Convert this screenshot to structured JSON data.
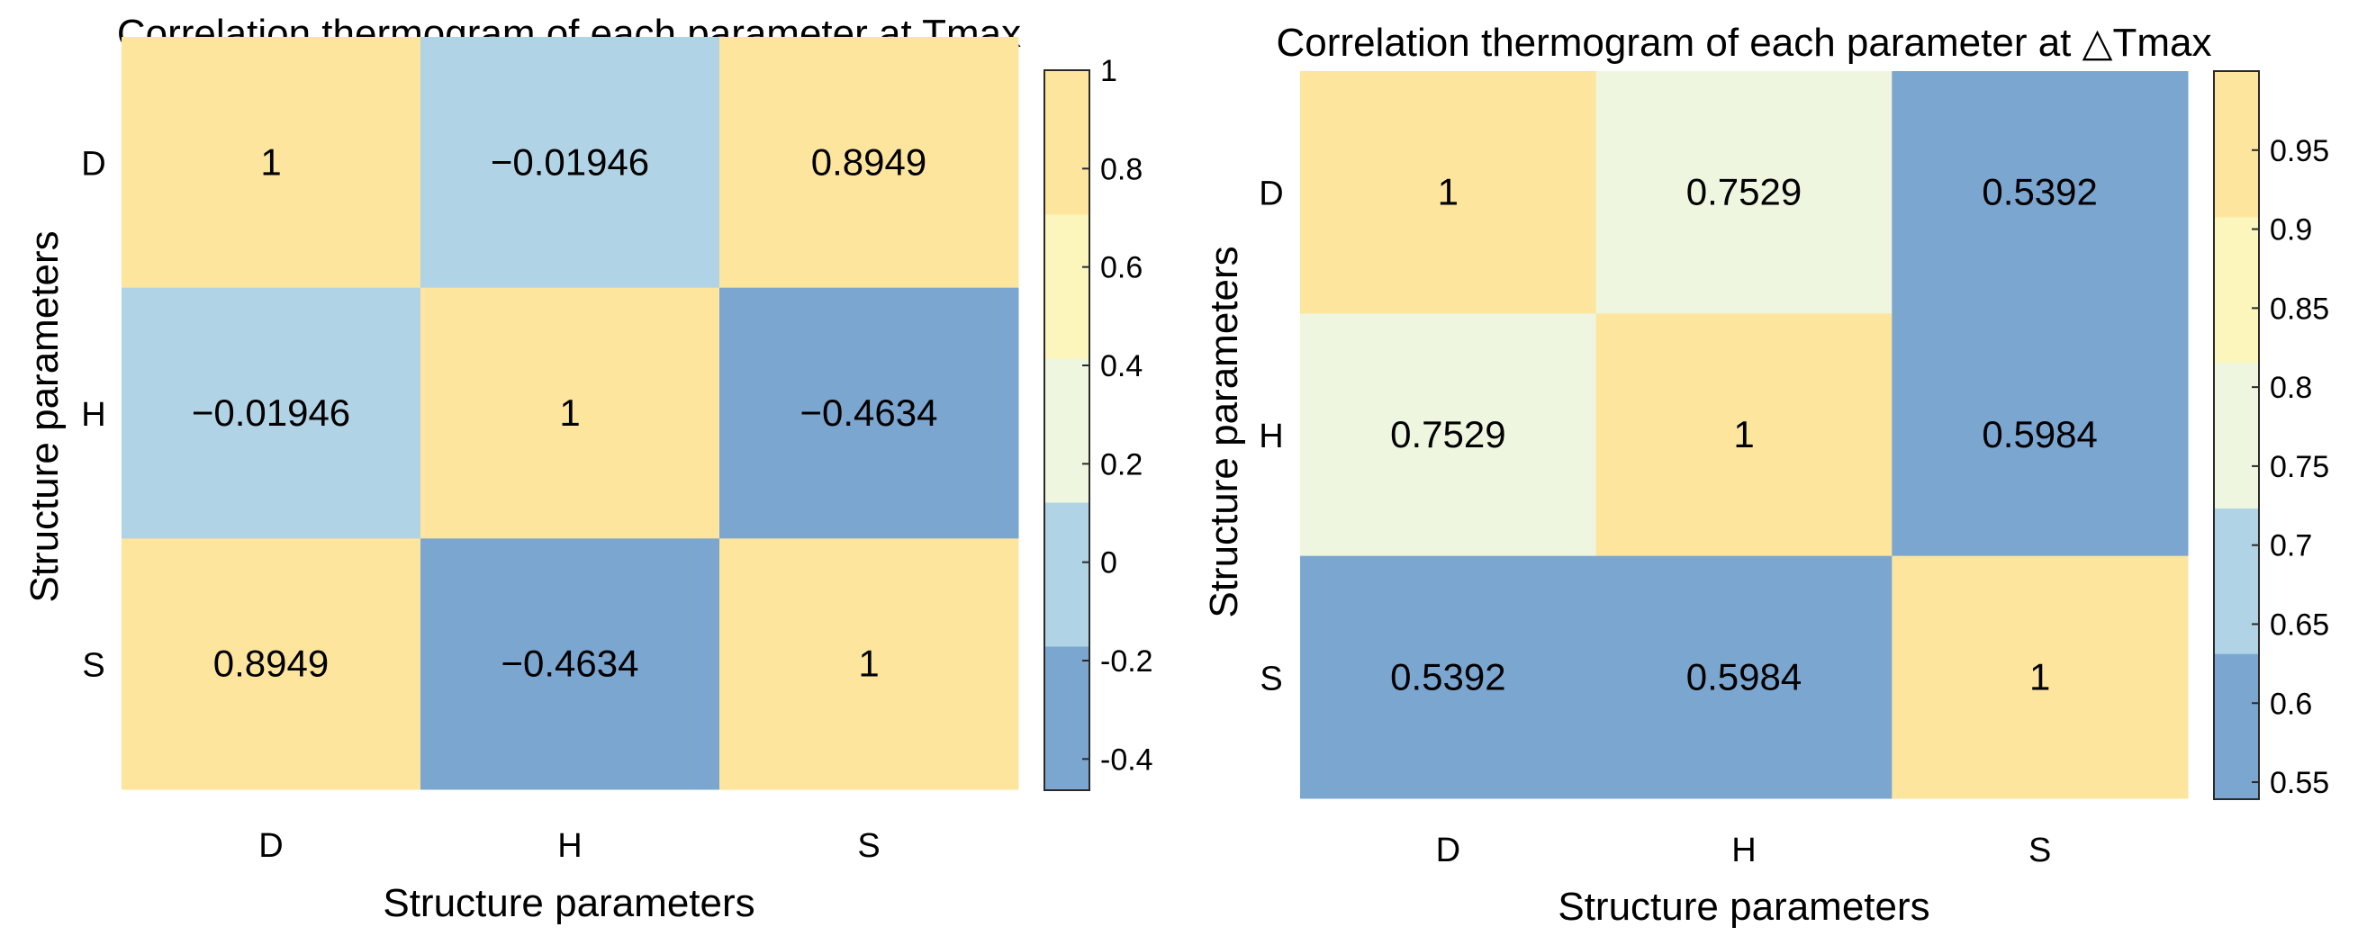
{
  "chart_data": [
    {
      "type": "heatmap",
      "title": "Correlation thermogram of each parameter at Tmax",
      "xlabel": "Structure parameters",
      "ylabel": "Structure parameters",
      "categories_x": [
        "D",
        "H",
        "S"
      ],
      "categories_y": [
        "D",
        "H",
        "S"
      ],
      "values": [
        [
          1,
          -0.01946,
          0.8949
        ],
        [
          -0.01946,
          1,
          -0.4634
        ],
        [
          0.8949,
          -0.4634,
          1
        ]
      ],
      "cell_labels": [
        [
          "1",
          "−0.01946",
          "0.8949"
        ],
        [
          "−0.01946",
          "1",
          "−0.4634"
        ],
        [
          "0.8949",
          "−0.4634",
          "1"
        ]
      ],
      "colorbar": {
        "range": [
          -0.4634,
          1
        ],
        "ticks": [
          1,
          0.8,
          0.6,
          0.4,
          0.2,
          0,
          -0.2,
          -0.4
        ],
        "tick_labels": [
          "1",
          "0.8",
          "0.6",
          "0.4",
          "0.2",
          "0",
          "-0.2",
          "-0.4"
        ],
        "bins": [
          {
            "from": -0.4634,
            "to": -0.1707,
            "color": "#7BA6D0"
          },
          {
            "from": -0.1707,
            "to": 0.1219,
            "color": "#B0D3E6"
          },
          {
            "from": 0.1219,
            "to": 0.4146,
            "color": "#EEF6DF"
          },
          {
            "from": 0.4146,
            "to": 0.7073,
            "color": "#FCF6BC"
          },
          {
            "from": 0.7073,
            "to": 1,
            "color": "#FDE59E"
          }
        ]
      }
    },
    {
      "type": "heatmap",
      "title": "Correlation thermogram of each parameter at △Tmax",
      "xlabel": "Structure parameters",
      "ylabel": "Structure parameters",
      "categories_x": [
        "D",
        "H",
        "S"
      ],
      "categories_y": [
        "D",
        "H",
        "S"
      ],
      "values": [
        [
          1,
          0.7529,
          0.5392
        ],
        [
          0.7529,
          1,
          0.5984
        ],
        [
          0.5392,
          0.5984,
          1
        ]
      ],
      "cell_labels": [
        [
          "1",
          "0.7529",
          "0.5392"
        ],
        [
          "0.7529",
          "1",
          "0.5984"
        ],
        [
          "0.5392",
          "0.5984",
          "1"
        ]
      ],
      "colorbar": {
        "range": [
          0.5392,
          1
        ],
        "ticks": [
          0.95,
          0.9,
          0.85,
          0.8,
          0.75,
          0.7,
          0.65,
          0.6,
          0.55
        ],
        "tick_labels": [
          "0.95",
          "0.9",
          "0.85",
          "0.8",
          "0.75",
          "0.7",
          "0.65",
          "0.6",
          "0.55"
        ],
        "bins": [
          {
            "from": 0.5392,
            "to": 0.6314,
            "color": "#7BA6D0"
          },
          {
            "from": 0.6314,
            "to": 0.7235,
            "color": "#B0D3E6"
          },
          {
            "from": 0.7235,
            "to": 0.8157,
            "color": "#EEF6DF"
          },
          {
            "from": 0.8157,
            "to": 0.9078,
            "color": "#FCF6BC"
          },
          {
            "from": 0.9078,
            "to": 1,
            "color": "#FDE59E"
          }
        ]
      }
    }
  ]
}
